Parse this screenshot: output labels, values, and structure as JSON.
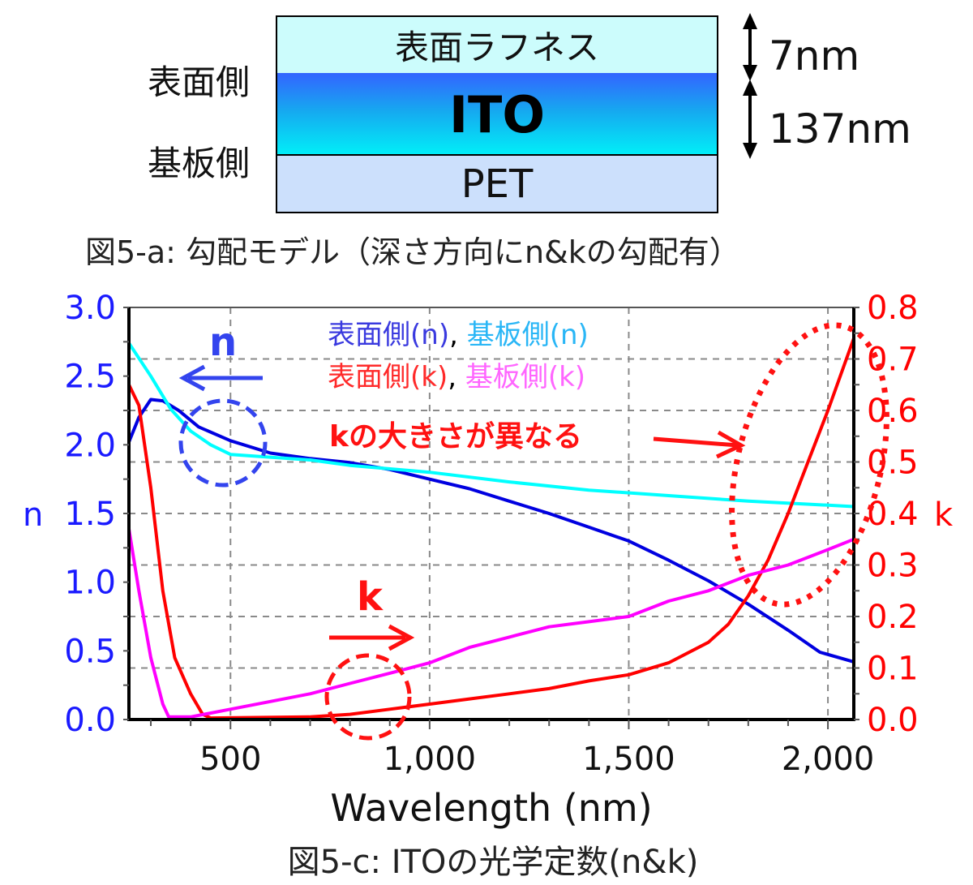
{
  "model": {
    "layers": [
      {
        "name": "表面ラフネス",
        "thickness": "7nm",
        "color": "#ccfcfc"
      },
      {
        "name": "ITO",
        "thickness": "137nm",
        "color": "#1aa8f0"
      },
      {
        "name": "PET",
        "thickness": "",
        "color": "#cce0fc"
      }
    ],
    "surface_side_label": "表面側",
    "substrate_side_label": "基板側",
    "caption": "図5-a: 勾配モデル（深さ方向にn&kの勾配有）"
  },
  "chart_data": {
    "type": "line",
    "title": "",
    "caption": "図5-c: ITOの光学定数(n&k)",
    "xlabel": "Wavelength (nm)",
    "ylabel": "n",
    "y2label": "k",
    "xlim": [
      245,
      2065
    ],
    "ylim": [
      0,
      3.0
    ],
    "y2lim": [
      0,
      0.8
    ],
    "xticks": [
      500,
      1000,
      1500,
      2000
    ],
    "xtick_labels": [
      "500",
      "1,000",
      "1,500",
      "2,000"
    ],
    "yticks": [
      0,
      0.5,
      1.0,
      1.5,
      2.0,
      2.5,
      3.0
    ],
    "ytick_labels": [
      "0.0",
      "0.5",
      "1.0",
      "1.5",
      "2.0",
      "2.5",
      "3.0"
    ],
    "y2ticks": [
      0,
      0.1,
      0.2,
      0.3,
      0.4,
      0.5,
      0.6,
      0.7,
      0.8
    ],
    "y2tick_labels": [
      "0.0",
      "0.1",
      "0.2",
      "0.3",
      "0.4",
      "0.5",
      "0.6",
      "0.7",
      "0.8"
    ],
    "grid": true,
    "legend_position": "top-center",
    "axis_colors": {
      "n": "#1a1aff",
      "k": "#ff0000"
    },
    "series": [
      {
        "name": "表面側(n)",
        "axis": "left",
        "color": "#0000e0",
        "points": [
          [
            245,
            2.02
          ],
          [
            270,
            2.2
          ],
          [
            300,
            2.33
          ],
          [
            330,
            2.32
          ],
          [
            370,
            2.25
          ],
          [
            420,
            2.13
          ],
          [
            500,
            2.03
          ],
          [
            600,
            1.94
          ],
          [
            700,
            1.9
          ],
          [
            800,
            1.87
          ],
          [
            900,
            1.82
          ],
          [
            1000,
            1.75
          ],
          [
            1100,
            1.68
          ],
          [
            1200,
            1.59
          ],
          [
            1300,
            1.5
          ],
          [
            1400,
            1.4
          ],
          [
            1500,
            1.3
          ],
          [
            1600,
            1.16
          ],
          [
            1700,
            1.01
          ],
          [
            1800,
            0.84
          ],
          [
            1900,
            0.65
          ],
          [
            1980,
            0.49
          ],
          [
            2065,
            0.42
          ]
        ]
      },
      {
        "name": "基板側(n)",
        "axis": "left",
        "color": "#00ffff",
        "points": [
          [
            245,
            2.74
          ],
          [
            300,
            2.5
          ],
          [
            350,
            2.26
          ],
          [
            400,
            2.1
          ],
          [
            450,
            2.0
          ],
          [
            500,
            1.93
          ],
          [
            600,
            1.91
          ],
          [
            700,
            1.89
          ],
          [
            800,
            1.85
          ],
          [
            1000,
            1.8
          ],
          [
            1200,
            1.73
          ],
          [
            1400,
            1.67
          ],
          [
            1600,
            1.63
          ],
          [
            1800,
            1.59
          ],
          [
            2000,
            1.56
          ],
          [
            2065,
            1.55
          ]
        ]
      },
      {
        "name": "表面側(k)",
        "axis": "right",
        "color": "#ff0000",
        "points": [
          [
            245,
            0.65
          ],
          [
            270,
            0.61
          ],
          [
            300,
            0.45
          ],
          [
            330,
            0.25
          ],
          [
            360,
            0.12
          ],
          [
            400,
            0.05
          ],
          [
            430,
            0.01
          ],
          [
            450,
            0.003
          ],
          [
            700,
            0.005
          ],
          [
            800,
            0.01
          ],
          [
            900,
            0.02
          ],
          [
            1000,
            0.03
          ],
          [
            1100,
            0.04
          ],
          [
            1200,
            0.05
          ],
          [
            1300,
            0.06
          ],
          [
            1400,
            0.075
          ],
          [
            1500,
            0.087
          ],
          [
            1600,
            0.11
          ],
          [
            1700,
            0.15
          ],
          [
            1750,
            0.185
          ],
          [
            1800,
            0.24
          ],
          [
            1850,
            0.31
          ],
          [
            1900,
            0.4
          ],
          [
            1950,
            0.5
          ],
          [
            2000,
            0.6
          ],
          [
            2065,
            0.74
          ]
        ]
      },
      {
        "name": "基板側(k)",
        "axis": "right",
        "color": "#ff00ff",
        "points": [
          [
            245,
            0.37
          ],
          [
            270,
            0.25
          ],
          [
            300,
            0.12
          ],
          [
            330,
            0.03
          ],
          [
            345,
            0.005
          ],
          [
            400,
            0.005
          ],
          [
            500,
            0.02
          ],
          [
            600,
            0.035
          ],
          [
            700,
            0.05
          ],
          [
            800,
            0.07
          ],
          [
            900,
            0.09
          ],
          [
            1000,
            0.11
          ],
          [
            1100,
            0.14
          ],
          [
            1200,
            0.16
          ],
          [
            1300,
            0.18
          ],
          [
            1400,
            0.19
          ],
          [
            1500,
            0.2
          ],
          [
            1600,
            0.23
          ],
          [
            1700,
            0.25
          ],
          [
            1800,
            0.28
          ],
          [
            1900,
            0.3
          ],
          [
            2000,
            0.33
          ],
          [
            2065,
            0.35
          ]
        ]
      }
    ],
    "legend": [
      {
        "text": "表面側(n)",
        "color": "#3a3adf"
      },
      {
        "text": ", ",
        "color": "#000000"
      },
      {
        "text": "基板側(n)",
        "color": "#29b6f6"
      },
      {
        "text": "表面側(k)",
        "color": "#ff2a2a"
      },
      {
        "text": ", ",
        "color": "#000000"
      },
      {
        "text": "基板側(k)",
        "color": "#ff66ff"
      }
    ],
    "annotations": {
      "n_arrow_label": "n",
      "k_arrow_label": "k",
      "k_diff_note": "kの大きさが異なる"
    }
  }
}
